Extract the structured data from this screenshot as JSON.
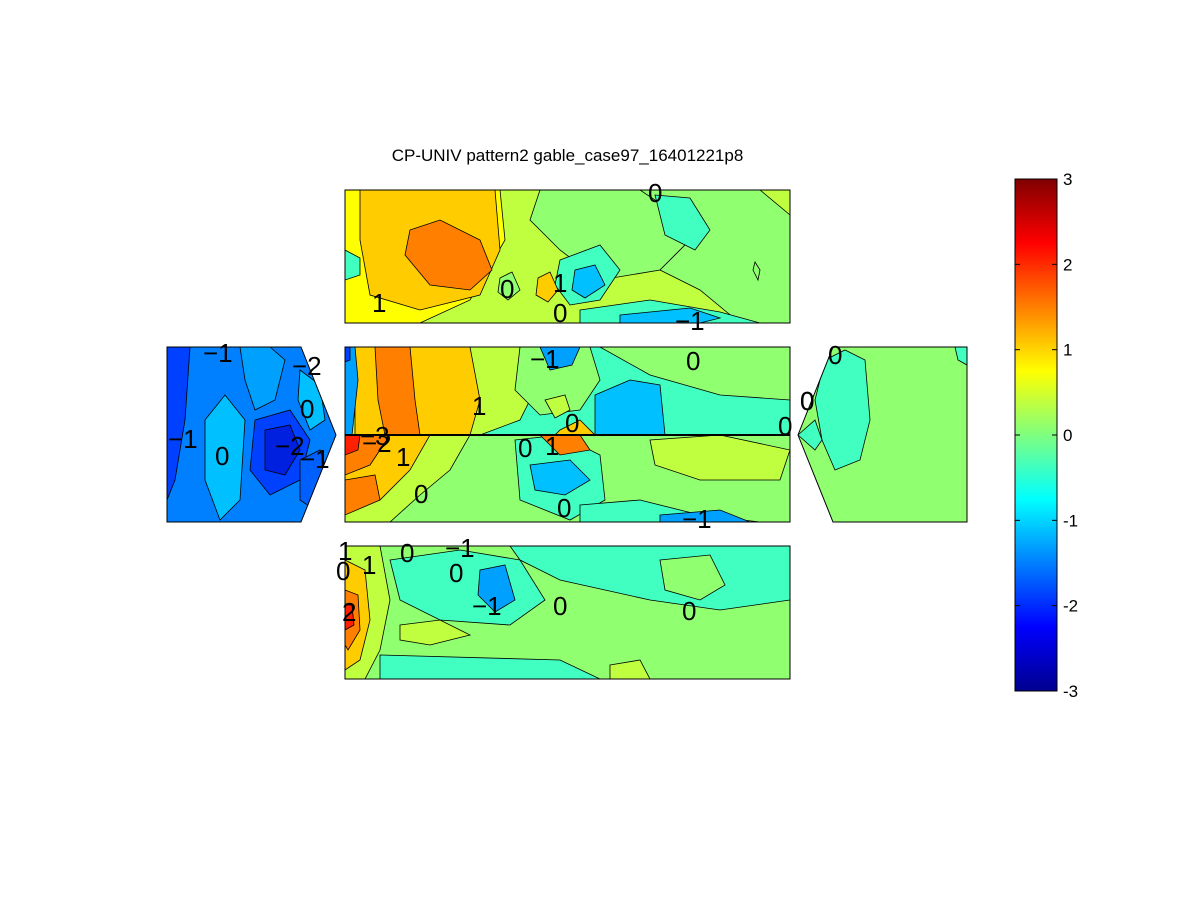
{
  "chart_data": {
    "type": "heatmap",
    "title": "CP-UNIV pattern2 gable_case97_16401221p8",
    "colormap": "jet",
    "clim": [
      -3,
      3
    ],
    "colorbar_ticks": [
      -3,
      -2,
      -1,
      0,
      1,
      2,
      3
    ],
    "colorbar_tick_labels": [
      "-3",
      "-2",
      "-1",
      "0",
      "1",
      "2",
      "3"
    ],
    "panels": [
      {
        "name": "top-face",
        "contour_labels": [
          "0",
          "0",
          "1",
          "1",
          "0",
          "-1"
        ]
      },
      {
        "name": "left-gable",
        "contour_labels": [
          "-1",
          "-2",
          "0",
          "-1",
          "0",
          "-2",
          "-1"
        ]
      },
      {
        "name": "roof-windward",
        "contour_labels": [
          "-1",
          "0",
          "1",
          "0",
          "0",
          "0"
        ]
      },
      {
        "name": "roof-leeward",
        "contour_labels": [
          "-3",
          "-2",
          "1",
          "0",
          "1",
          "0",
          "0",
          "-1"
        ]
      },
      {
        "name": "right-gable",
        "contour_labels": [
          "0",
          "0"
        ]
      },
      {
        "name": "bottom-face",
        "contour_labels": [
          "1",
          "0",
          "1",
          "0",
          "-1",
          "0",
          "-1",
          "0",
          "0",
          "2"
        ]
      }
    ],
    "legend_placement": "right",
    "grid": false
  }
}
